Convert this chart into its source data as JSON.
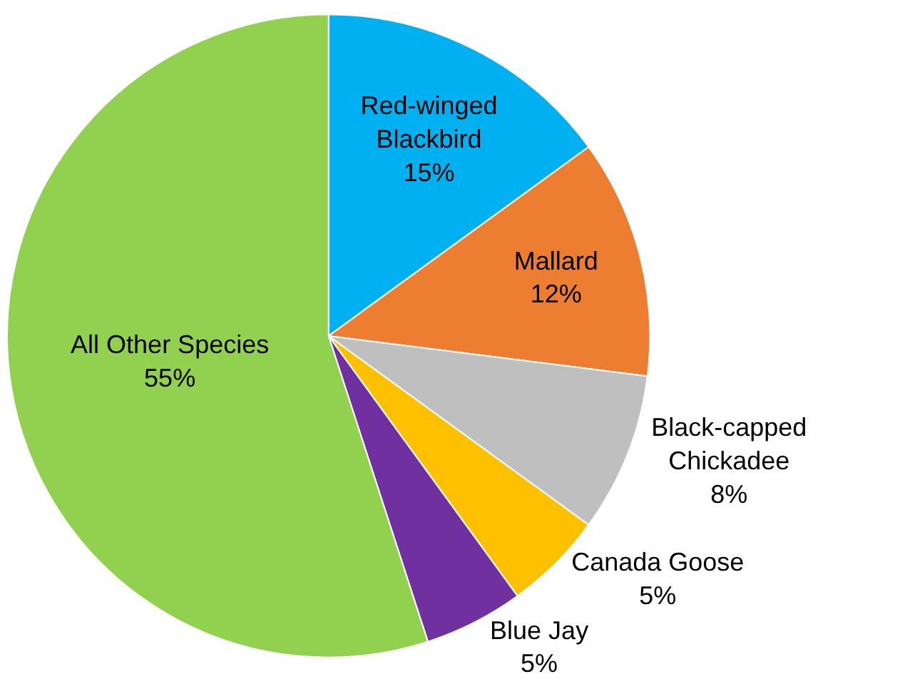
{
  "chart_data": {
    "type": "pie",
    "categories": [
      "Red-winged\nBlackbird",
      "Mallard",
      "Black-capped\nChickadee",
      "Canada Goose",
      "Blue Jay",
      "All Other Species"
    ],
    "values": [
      15,
      12,
      8,
      5,
      5,
      55
    ],
    "value_labels": [
      "15%",
      "12%",
      "8%",
      "5%",
      "5%",
      "55%"
    ],
    "colors": [
      "#00b0f0",
      "#ed7d31",
      "#bfbfbf",
      "#ffc000",
      "#7030a0",
      "#92d050"
    ],
    "legend": false
  }
}
